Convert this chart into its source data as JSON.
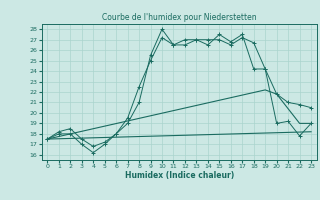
{
  "title": "Courbe de l'humidex pour Niederstetten",
  "xlabel": "Humidex (Indice chaleur)",
  "xlim": [
    -0.5,
    23.5
  ],
  "ylim": [
    15.5,
    28.5
  ],
  "yticks": [
    16,
    17,
    18,
    19,
    20,
    21,
    22,
    23,
    24,
    25,
    26,
    27,
    28
  ],
  "xticks": [
    0,
    1,
    2,
    3,
    4,
    5,
    6,
    7,
    8,
    9,
    10,
    11,
    12,
    13,
    14,
    15,
    16,
    17,
    18,
    19,
    20,
    21,
    22,
    23
  ],
  "bg_color": "#cce8e4",
  "grid_color": "#aad4ce",
  "line_color": "#1a6b60",
  "lines": [
    {
      "x": [
        0,
        1,
        2,
        3,
        4,
        5,
        6,
        7,
        8,
        9,
        10,
        11,
        12,
        13,
        14,
        15,
        16,
        17,
        18,
        19,
        20,
        21,
        22,
        23
      ],
      "y": [
        17.5,
        18.2,
        18.5,
        17.5,
        16.8,
        17.2,
        18.0,
        19.0,
        21.0,
        25.5,
        28.0,
        26.5,
        26.5,
        27.0,
        26.5,
        27.5,
        26.8,
        27.5,
        24.2,
        24.2,
        19.0,
        19.2,
        17.8,
        19.0
      ],
      "marker": "+"
    },
    {
      "x": [
        0,
        1,
        2,
        3,
        4,
        5,
        6,
        7,
        8,
        9,
        10,
        11,
        12,
        13,
        14,
        15,
        16,
        17,
        18,
        19,
        20,
        21,
        22,
        23
      ],
      "y": [
        17.5,
        18.0,
        18.0,
        17.0,
        16.2,
        17.0,
        18.0,
        19.5,
        22.5,
        25.0,
        27.2,
        26.5,
        27.0,
        27.0,
        27.0,
        27.0,
        26.5,
        27.2,
        26.7,
        24.2,
        21.8,
        21.0,
        20.8,
        20.5
      ],
      "marker": "+"
    },
    {
      "x": [
        0,
        19,
        20,
        22,
        23
      ],
      "y": [
        17.5,
        22.2,
        21.8,
        19.0,
        19.0
      ],
      "marker": null
    },
    {
      "x": [
        0,
        23
      ],
      "y": [
        17.5,
        18.2
      ],
      "marker": null
    }
  ]
}
